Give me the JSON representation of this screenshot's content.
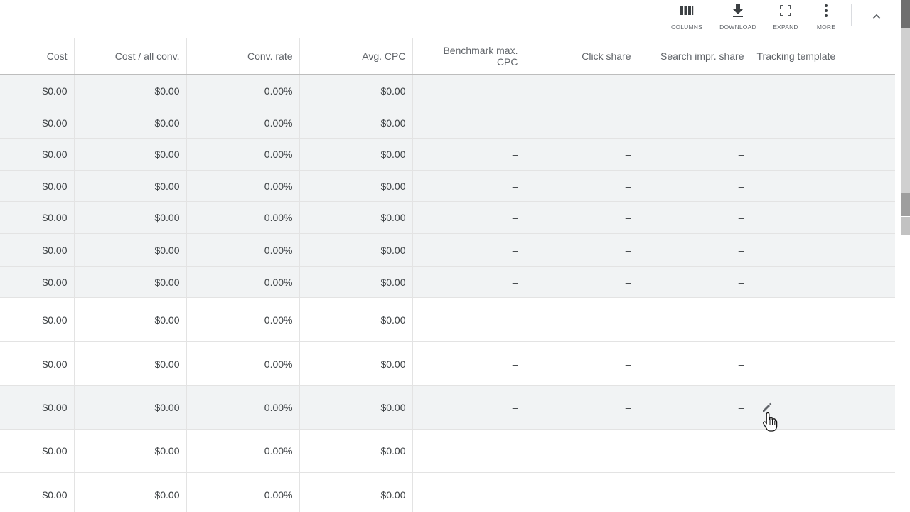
{
  "toolbar": {
    "columns_label": "COLUMNS",
    "download_label": "DOWNLOAD",
    "expand_label": "EXPAND",
    "more_label": "MORE"
  },
  "table": {
    "headers": [
      "Cost",
      "Cost / all conv.",
      "Conv. rate",
      "Avg. CPC",
      "Benchmark max. CPC",
      "Click share",
      "Search impr. share",
      "Tracking template"
    ],
    "rows": [
      [
        "$0.00",
        "$0.00",
        "0.00%",
        "$0.00",
        "–",
        "–",
        "–",
        ""
      ],
      [
        "$0.00",
        "$0.00",
        "0.00%",
        "$0.00",
        "–",
        "–",
        "–",
        ""
      ],
      [
        "$0.00",
        "$0.00",
        "0.00%",
        "$0.00",
        "–",
        "–",
        "–",
        ""
      ],
      [
        "$0.00",
        "$0.00",
        "0.00%",
        "$0.00",
        "–",
        "–",
        "–",
        ""
      ],
      [
        "$0.00",
        "$0.00",
        "0.00%",
        "$0.00",
        "–",
        "–",
        "–",
        ""
      ],
      [
        "$0.00",
        "$0.00",
        "0.00%",
        "$0.00",
        "–",
        "–",
        "–",
        ""
      ],
      [
        "$0.00",
        "$0.00",
        "0.00%",
        "$0.00",
        "–",
        "–",
        "–",
        ""
      ],
      [
        "$0.00",
        "$0.00",
        "0.00%",
        "$0.00",
        "–",
        "–",
        "–",
        ""
      ],
      [
        "$0.00",
        "$0.00",
        "0.00%",
        "$0.00",
        "–",
        "–",
        "–",
        ""
      ],
      [
        "$0.00",
        "$0.00",
        "0.00%",
        "$0.00",
        "–",
        "–",
        "–",
        ""
      ],
      [
        "$0.00",
        "$0.00",
        "0.00%",
        "$0.00",
        "–",
        "–",
        "–",
        ""
      ],
      [
        "$0.00",
        "$0.00",
        "0.00%",
        "$0.00",
        "–",
        "–",
        "–",
        ""
      ]
    ]
  },
  "icons": [
    "columns-icon",
    "download-icon",
    "expand-icon",
    "more-icon",
    "chevron-up-icon",
    "pencil-icon",
    "hand-cursor-icon"
  ]
}
